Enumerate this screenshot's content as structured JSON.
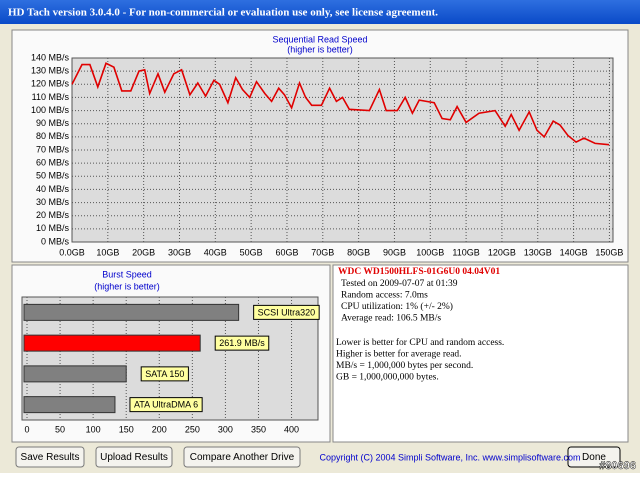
{
  "window": {
    "title": "HD Tach version 3.0.4.0  - For non-commercial or evaluation use only, see license agreement."
  },
  "chart_data": [
    {
      "type": "line",
      "title": "Sequential Read Speed",
      "subtitle": "(higher is better)",
      "color": "#e00000",
      "grid": true,
      "x": [
        0,
        2.8,
        5,
        7.2,
        9.5,
        11.7,
        13.9,
        16.4,
        18.7,
        20.3,
        21.7,
        24,
        25.9,
        28.4,
        30.6,
        32.9,
        35.1,
        37.3,
        39.6,
        41.2,
        43.5,
        45.7,
        47.6,
        49.6,
        51.5,
        53.8,
        55.7,
        57.7,
        59.3,
        61.3,
        63.5,
        65.2,
        66.9,
        69.6,
        71.9,
        73.8,
        75.5,
        77.4,
        83,
        85.8,
        87.7,
        90.8,
        93,
        95,
        96.9,
        101.1,
        103.3,
        105.6,
        107.5,
        110,
        113.6,
        118.1,
        120.9,
        122.6,
        124.8,
        127.6,
        129.8,
        131.8,
        134.3,
        136.2,
        138.4,
        140.7,
        142.9,
        146,
        149.9
      ],
      "values": [
        120,
        135,
        135,
        118,
        136,
        133,
        115,
        115,
        130,
        131,
        113,
        128,
        114,
        128,
        131,
        112,
        121,
        111,
        123,
        120,
        106,
        125,
        116,
        110,
        122,
        113,
        107,
        117,
        112,
        102,
        121,
        110,
        104,
        104,
        117,
        107,
        110,
        101,
        100,
        116,
        100,
        100,
        110,
        98,
        108,
        106,
        94,
        93,
        103,
        91,
        98,
        100,
        88,
        97,
        85,
        99,
        85,
        80,
        92,
        89,
        81,
        76,
        79,
        75,
        74
      ],
      "xlim": [
        0,
        151
      ],
      "xticks": [
        {
          "value": 0,
          "label": "0.0GB"
        },
        {
          "value": 10,
          "label": "10GB"
        },
        {
          "value": 20,
          "label": "20GB"
        },
        {
          "value": 30,
          "label": "30GB"
        },
        {
          "value": 40,
          "label": "40GB"
        },
        {
          "value": 50,
          "label": "50GB"
        },
        {
          "value": 60,
          "label": "60GB"
        },
        {
          "value": 70,
          "label": "70GB"
        },
        {
          "value": 80,
          "label": "80GB"
        },
        {
          "value": 90,
          "label": "90GB"
        },
        {
          "value": 100,
          "label": "100GB"
        },
        {
          "value": 110,
          "label": "110GB"
        },
        {
          "value": 120,
          "label": "120GB"
        },
        {
          "value": 130,
          "label": "130GB"
        },
        {
          "value": 140,
          "label": "140GB"
        },
        {
          "value": 150,
          "label": "150GB"
        }
      ],
      "ylim": [
        0,
        140
      ],
      "yticks": [
        {
          "value": 0,
          "label": "0 MB/s"
        },
        {
          "value": 10,
          "label": "10 MB/s"
        },
        {
          "value": 20,
          "label": "20 MB/s"
        },
        {
          "value": 30,
          "label": "30 MB/s"
        },
        {
          "value": 40,
          "label": "40 MB/s"
        },
        {
          "value": 50,
          "label": "50 MB/s"
        },
        {
          "value": 60,
          "label": "60 MB/s"
        },
        {
          "value": 70,
          "label": "70 MB/s"
        },
        {
          "value": 80,
          "label": "80 MB/s"
        },
        {
          "value": 90,
          "label": "90 MB/s"
        },
        {
          "value": 100,
          "label": "100 MB/s"
        },
        {
          "value": 110,
          "label": "110 MB/s"
        },
        {
          "value": 120,
          "label": "120 MB/s"
        },
        {
          "value": 130,
          "label": "130 MB/s"
        },
        {
          "value": 140,
          "label": "140 MB/s"
        }
      ]
    },
    {
      "type": "hbar",
      "title": "Burst Speed",
      "subtitle": "(higher is better)",
      "grid": true,
      "categories": [
        "SCSI Ultra320",
        null,
        "SATA 150",
        "ATA UltraDMA 6"
      ],
      "values": [
        320,
        261.9,
        150,
        133
      ],
      "value_labels": [
        null,
        "261.9 MB/s",
        null,
        null
      ],
      "colors": [
        "#808080",
        "#ff0000",
        "#808080",
        "#808080"
      ],
      "xlim": [
        0,
        440
      ],
      "xticks": [
        0,
        50,
        100,
        150,
        200,
        250,
        300,
        350,
        400
      ]
    }
  ],
  "info": {
    "drive": "WDC WD1500HLFS-01G6U0 04.04V01",
    "stats": [
      "Tested on 2009-07-07 at 01:39",
      "Random access: 7.0ms",
      "CPU utilization: 1% (+/- 2%)",
      "Average read: 106.5 MB/s"
    ],
    "notes": [
      "Lower is better for CPU and random access.",
      "Higher is better for average read.",
      "MB/s = 1,000,000 bytes per second.",
      "GB = 1,000,000,000 bytes."
    ]
  },
  "buttons": [
    "Save Results",
    "Upload Results",
    "Compare Another Drive",
    "Done"
  ],
  "copyright": "Copyright (C) 2004 Simpli Software, Inc. www.simplisoftware.com",
  "watermark": "#80696"
}
